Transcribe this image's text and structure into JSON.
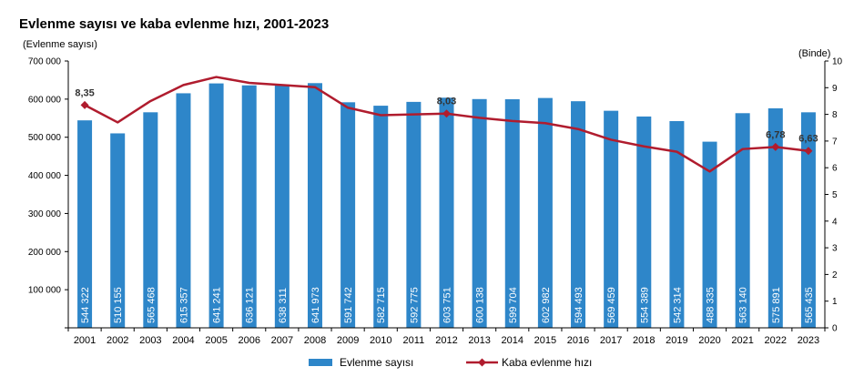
{
  "chart_data": {
    "type": "bar",
    "title": "Evlenme sayısı ve kaba evlenme hızı, 2001-2023",
    "ylabel_left": "(Evlenme sayısı)",
    "ylabel_right": "(Binde)",
    "ylim_left": [
      0,
      700000
    ],
    "ylim_right": [
      0,
      10
    ],
    "yticks_left": [
      "",
      "100 000",
      "200 000",
      "300 000",
      "400 000",
      "500 000",
      "600 000",
      "700 000"
    ],
    "yticks_right": [
      "0",
      "1",
      "2",
      "3",
      "4",
      "5",
      "6",
      "7",
      "8",
      "9",
      "10"
    ],
    "categories": [
      "2001",
      "2002",
      "2003",
      "2004",
      "2005",
      "2006",
      "2007",
      "2008",
      "2009",
      "2010",
      "2011",
      "2012",
      "2013",
      "2014",
      "2015",
      "2016",
      "2017",
      "2018",
      "2019",
      "2020",
      "2021",
      "2022",
      "2023"
    ],
    "bar_series": {
      "name": "Evlenme sayısı",
      "color": "#2e86c9",
      "values": [
        544322,
        510155,
        565468,
        615357,
        641241,
        636121,
        638311,
        641973,
        591742,
        582715,
        592775,
        603751,
        600138,
        599704,
        602982,
        594493,
        569459,
        554389,
        542314,
        488335,
        563140,
        575891,
        565435
      ],
      "labels": [
        "544 322",
        "510 155",
        "565 468",
        "615 357",
        "641 241",
        "636 121",
        "638 311",
        "641 973",
        "591 742",
        "582 715",
        "592 775",
        "603 751",
        "600 138",
        "599 704",
        "602 982",
        "594 493",
        "569 459",
        "554 389",
        "542 314",
        "488 335",
        "563 140",
        "575 891",
        "565 435"
      ]
    },
    "line_series": {
      "name": "Kaba evlenme hızı",
      "color": "#b01c2e",
      "values": [
        8.35,
        7.7,
        8.5,
        9.1,
        9.4,
        9.18,
        9.1,
        9.02,
        8.25,
        7.97,
        8.0,
        8.03,
        7.87,
        7.75,
        7.67,
        7.45,
        7.05,
        6.8,
        6.6,
        5.86,
        6.7,
        6.78,
        6.63
      ],
      "labeled_points": [
        {
          "category": "2001",
          "label": "8,35"
        },
        {
          "category": "2012",
          "label": "8,03"
        },
        {
          "category": "2022",
          "label": "6,78"
        },
        {
          "category": "2023",
          "label": "6,63"
        }
      ]
    },
    "legend_position": "bottom-center",
    "grid": false
  }
}
